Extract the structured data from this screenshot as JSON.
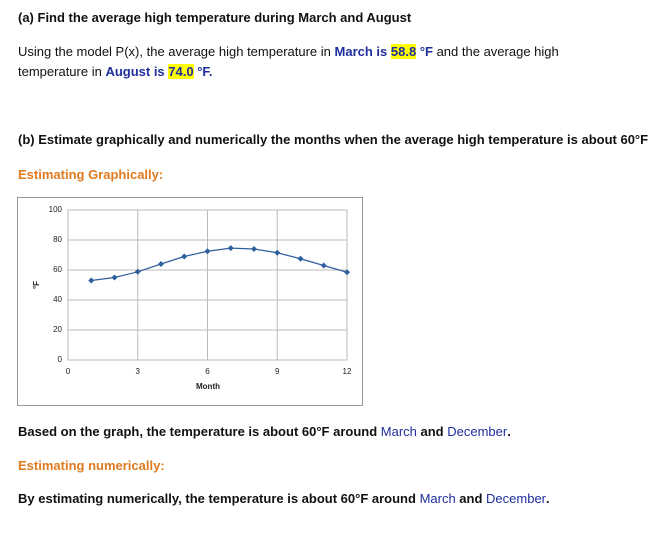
{
  "part_a": {
    "title": "(a) Find the average high temperature during March and August",
    "line_1": [
      "Using the model P(x), the average high temperature in ",
      "March is",
      "58.8",
      " °F",
      " and the average high"
    ],
    "line_2": [
      "temperature in ",
      "August is",
      "74.0",
      " °F."
    ]
  },
  "part_b": {
    "title": "(b) Estimate graphically and numerically the months when the average high temperature is about 60°F",
    "graphical_heading": "Estimating Graphically:",
    "graphical_result": [
      "Based on the graph, the temperature is about 60°F around ",
      "March",
      " and ",
      "December",
      "."
    ],
    "numerical_heading": "Estimating numerically:",
    "numerical_result": [
      "By estimating numerically, the temperature is about 60°F around ",
      "March",
      " and ",
      "December",
      "."
    ]
  },
  "chart_data": {
    "type": "line",
    "x_label": "Month",
    "y_label": "°F",
    "x": [
      1,
      2,
      3,
      4,
      5,
      6,
      7,
      8,
      9,
      10,
      11,
      12
    ],
    "values": [
      53,
      55,
      58.8,
      64,
      69,
      72.5,
      74.6,
      74.0,
      71.5,
      67.5,
      63,
      58.5
    ],
    "color": "#2f5f9e",
    "xlim": [
      0,
      12
    ],
    "xticks": [
      0,
      3,
      6,
      9,
      12
    ],
    "ylim": [
      0,
      100
    ],
    "yticks": [
      0,
      20,
      40,
      60,
      80,
      100
    ],
    "grid": true
  }
}
